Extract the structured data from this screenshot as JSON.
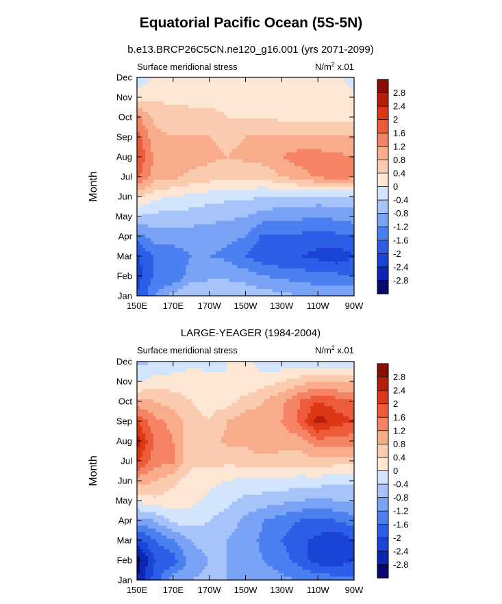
{
  "figure": {
    "title": "Equatorial Pacific Ocean (5S-5N)"
  },
  "chart_data": [
    {
      "type": "heatmap",
      "title": "b.e13.BRCP26C5CN.ne120_g16.001 (yrs 2071-2099)",
      "left_label": "Surface meridional stress",
      "right_label_base": "N/m",
      "right_label_exp": "2",
      "right_label_tail": " x.01",
      "ylabel": "Month",
      "xlabel": "",
      "x_ticks": [
        "150E",
        "170E",
        "170W",
        "150W",
        "130W",
        "110W",
        "90W"
      ],
      "y_ticks": [
        "Jan",
        "Feb",
        "Mar",
        "Apr",
        "May",
        "Jun",
        "Jul",
        "Aug",
        "Sep",
        "Oct",
        "Nov",
        "Dec"
      ],
      "x_range": [
        "150E",
        "90W"
      ],
      "y_range": [
        "Jan",
        "Dec"
      ],
      "rows": [
        [
          -2.0,
          -1.2,
          -0.6,
          -0.4,
          -0.4,
          -0.4,
          -0.5,
          -0.6,
          -0.7,
          -0.8,
          -0.8,
          -0.8,
          -0.9
        ],
        [
          -2.2,
          -1.5,
          -1.6,
          -1.0,
          -0.9,
          -0.9,
          -1.0,
          -1.2,
          -1.3,
          -1.4,
          -1.5,
          -1.5,
          -1.6
        ],
        [
          -2.1,
          -1.5,
          -1.4,
          -1.2,
          -1.2,
          -1.3,
          -1.6,
          -1.9,
          -2.0,
          -2.0,
          -2.1,
          -2.3,
          -2.0
        ],
        [
          -1.4,
          -1.0,
          -1.0,
          -1.0,
          -1.0,
          -1.1,
          -1.2,
          -1.7,
          -1.7,
          -1.7,
          -1.8,
          -1.7,
          -1.6
        ],
        [
          -0.4,
          -0.5,
          -0.6,
          -0.6,
          -0.7,
          -0.7,
          -0.8,
          -1.0,
          -1.1,
          -1.1,
          -1.2,
          -1.1,
          -1.0
        ],
        [
          0.5,
          0.1,
          0.0,
          -0.1,
          -0.2,
          -0.3,
          -0.3,
          -0.4,
          -0.4,
          -0.4,
          -0.5,
          -0.5,
          -0.5
        ],
        [
          1.7,
          1.0,
          0.9,
          0.7,
          0.6,
          0.5,
          0.5,
          0.5,
          0.8,
          1.0,
          1.3,
          1.4,
          1.3
        ],
        [
          2.0,
          1.1,
          1.0,
          1.0,
          0.9,
          0.8,
          0.9,
          1.0,
          1.2,
          1.4,
          1.4,
          1.3,
          1.2
        ],
        [
          1.8,
          0.9,
          0.8,
          0.8,
          0.8,
          0.7,
          0.8,
          0.8,
          0.9,
          0.8,
          0.8,
          0.8,
          0.8
        ],
        [
          1.3,
          0.7,
          0.6,
          0.5,
          0.5,
          0.4,
          0.4,
          0.4,
          0.3,
          0.3,
          0.3,
          0.3,
          0.3
        ],
        [
          0.2,
          0.3,
          0.3,
          0.3,
          0.3,
          0.3,
          0.3,
          0.3,
          0.3,
          0.3,
          0.2,
          0.2,
          0.1
        ],
        [
          -0.3,
          0.1,
          0.1,
          0.1,
          0.1,
          0.1,
          0.1,
          0.1,
          0.1,
          0.0,
          0.0,
          0.1,
          -0.2
        ]
      ]
    },
    {
      "type": "heatmap",
      "title": "LARGE-YEAGER (1984-2004)",
      "left_label": "Surface meridional stress",
      "right_label_base": "N/m",
      "right_label_exp": "2",
      "right_label_tail": " x.01",
      "ylabel": "Month",
      "xlabel": "",
      "x_ticks": [
        "150E",
        "170E",
        "170W",
        "150W",
        "130W",
        "110W",
        "90W"
      ],
      "y_ticks": [
        "Jan",
        "Feb",
        "Mar",
        "Apr",
        "May",
        "Jun",
        "Jul",
        "Aug",
        "Sep",
        "Oct",
        "Nov",
        "Dec"
      ],
      "x_range": [
        "150E",
        "90W"
      ],
      "y_range": [
        "Jan",
        "Dec"
      ],
      "rows": [
        [
          -2.8,
          -1.8,
          -1.0,
          -0.8,
          -0.7,
          -0.8,
          -0.9,
          -1.0,
          -1.1,
          -1.2,
          -1.3,
          -1.4,
          -1.5
        ],
        [
          -3.0,
          -2.0,
          -1.8,
          -1.0,
          -0.8,
          -0.8,
          -1.0,
          -1.2,
          -1.4,
          -1.8,
          -2.2,
          -2.3,
          -2.0
        ],
        [
          -2.2,
          -1.6,
          -1.2,
          -0.8,
          -0.6,
          -0.8,
          -1.0,
          -1.3,
          -1.6,
          -1.9,
          -2.1,
          -2.4,
          -2.0
        ],
        [
          -1.0,
          -0.8,
          -0.3,
          -0.2,
          -0.4,
          -0.6,
          -0.9,
          -1.2,
          -1.4,
          -1.6,
          -1.7,
          -1.6,
          -1.4
        ],
        [
          0.1,
          0.3,
          0.2,
          0.1,
          -0.1,
          -0.3,
          -0.5,
          -0.6,
          -0.7,
          -0.8,
          -0.9,
          -0.8,
          -0.7
        ],
        [
          1.0,
          0.8,
          0.5,
          0.2,
          0.1,
          0.0,
          -0.1,
          -0.1,
          -0.1,
          -0.2,
          -0.2,
          -0.3,
          -0.3
        ],
        [
          2.1,
          1.4,
          1.3,
          0.5,
          0.6,
          0.5,
          0.6,
          0.6,
          0.6,
          0.6,
          0.7,
          0.6,
          0.6
        ],
        [
          2.6,
          1.5,
          1.2,
          0.5,
          0.6,
          0.9,
          0.9,
          1.2,
          1.0,
          1.0,
          1.5,
          1.4,
          1.4
        ],
        [
          2.0,
          1.3,
          1.1,
          0.5,
          0.4,
          0.8,
          1.0,
          1.0,
          1.2,
          1.7,
          2.6,
          2.2,
          2.0
        ],
        [
          0.9,
          0.8,
          0.6,
          0.4,
          0.3,
          0.2,
          0.6,
          0.8,
          1.1,
          1.6,
          2.0,
          1.8,
          1.6
        ],
        [
          -0.1,
          0.2,
          0.2,
          0.2,
          0.1,
          0.0,
          0.0,
          0.2,
          0.4,
          0.6,
          0.8,
          0.7,
          0.7
        ],
        [
          -0.5,
          -0.4,
          -0.3,
          -0.1,
          -0.1,
          0.0,
          0.2,
          -0.2,
          -0.3,
          -0.3,
          -0.4,
          -0.5,
          -0.5
        ]
      ]
    }
  ],
  "colorbar": {
    "labels": [
      "2.8",
      "2.4",
      "2",
      "1.6",
      "1.2",
      "0.8",
      "0.4",
      "0",
      "-0.4",
      "-0.8",
      "-1.2",
      "-1.6",
      "-2",
      "-2.4",
      "-2.8"
    ],
    "levels": [
      -2.8,
      -2.4,
      -2.0,
      -1.6,
      -1.2,
      -0.8,
      -0.4,
      0,
      0.4,
      0.8,
      1.2,
      1.6,
      2.0,
      2.4,
      2.8
    ],
    "colors": [
      "#07096e",
      "#0c26b2",
      "#1a44d6",
      "#2c5ee8",
      "#4a80f0",
      "#7aa3f5",
      "#a7c4fa",
      "#d3e4fd",
      "#fde6d3",
      "#fbcbb0",
      "#f8ac8c",
      "#f48463",
      "#ee5b3a",
      "#de3716",
      "#b81c0a",
      "#8b0e04"
    ]
  }
}
